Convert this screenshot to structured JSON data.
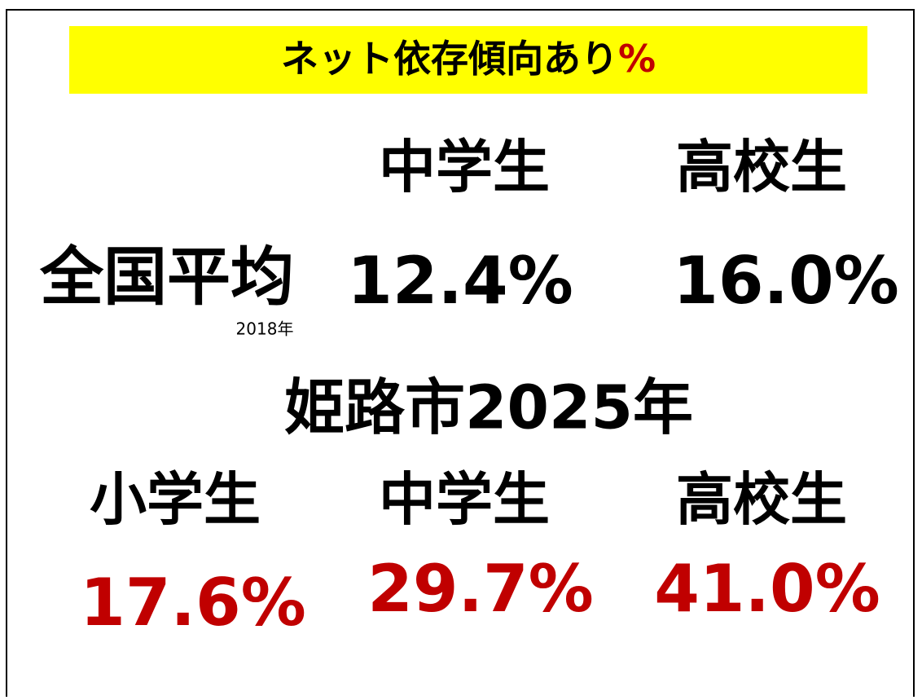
{
  "title": {
    "text": "ネット依存傾向あり",
    "unit": "%"
  },
  "national": {
    "label": "全国平均",
    "year": "2018年",
    "headers": [
      "中学生",
      "高校生"
    ],
    "values": [
      "12.4%",
      "16.0%"
    ]
  },
  "himeji": {
    "label": "姫路市2025年",
    "headers": [
      "小学生",
      "中学生",
      "高校生"
    ],
    "values": [
      "17.6%",
      "29.7%",
      "41.0%"
    ]
  }
}
